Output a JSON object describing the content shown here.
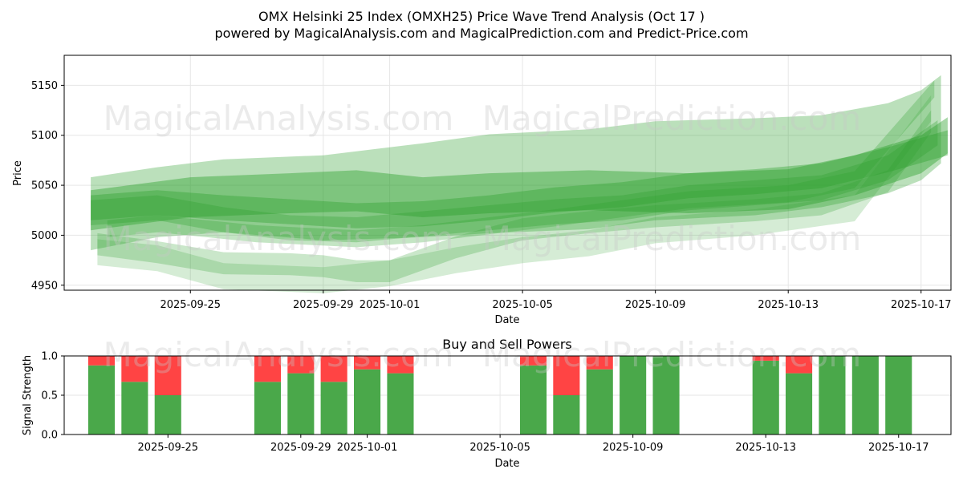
{
  "title_line1": "OMX Helsinki 25 Index (OMXH25) Price Wave Trend Analysis (Oct 17 )",
  "title_line2": "powered by MagicalAnalysis.com and MagicalPrediction.com and Predict-Price.com",
  "watermarks": [
    "MagicalAnalysis.com",
    "MagicalPrediction.com"
  ],
  "colors": {
    "band": "#2ca02c",
    "buy": "#4aa84a",
    "sell": "#ff4444",
    "grid": "#e6e6e6"
  },
  "chart_data": [
    {
      "type": "area",
      "title": "",
      "xlabel": "Date",
      "ylabel": "Price",
      "x_start": "2025-09-22",
      "x_end": "2025-10-17",
      "xlim": [
        -0.8,
        25.9
      ],
      "ylim": [
        4945,
        5180
      ],
      "x_ticks": [
        {
          "day": 3,
          "label": "2025-09-25"
        },
        {
          "day": 7,
          "label": "2025-09-29"
        },
        {
          "day": 9,
          "label": "2025-10-01"
        },
        {
          "day": 13,
          "label": "2025-10-05"
        },
        {
          "day": 17,
          "label": "2025-10-09"
        },
        {
          "day": 21,
          "label": "2025-10-13"
        },
        {
          "day": 25,
          "label": "2025-10-17"
        }
      ],
      "y_ticks": [
        4950,
        5000,
        5050,
        5100,
        5150
      ],
      "grid": true,
      "bands": [
        {
          "upper": [
            [
              0,
              5058
            ],
            [
              2,
              5068
            ],
            [
              4,
              5076
            ],
            [
              7,
              5080
            ],
            [
              10,
              5092
            ],
            [
              12,
              5101
            ],
            [
              15,
              5106
            ],
            [
              17,
              5114
            ],
            [
              20,
              5117
            ],
            [
              22,
              5120
            ],
            [
              24,
              5132
            ],
            [
              25,
              5145
            ],
            [
              25.6,
              5160
            ]
          ],
          "lower": [
            [
              0,
              4985
            ],
            [
              2,
              4998
            ],
            [
              4,
              5003
            ],
            [
              7,
              4995
            ],
            [
              10,
              4998
            ],
            [
              12,
              5002
            ],
            [
              15,
              5006
            ],
            [
              17,
              5015
            ],
            [
              20,
              5020
            ],
            [
              22,
              5028
            ],
            [
              24,
              5042
            ],
            [
              25,
              5055
            ],
            [
              25.6,
              5072
            ]
          ],
          "opacity": 0.32
        },
        {
          "upper": [
            [
              0,
              5045
            ],
            [
              3,
              5058
            ],
            [
              6,
              5062
            ],
            [
              8,
              5065
            ],
            [
              10,
              5058
            ],
            [
              12,
              5062
            ],
            [
              15,
              5065
            ],
            [
              18,
              5062
            ],
            [
              21,
              5066
            ],
            [
              23,
              5080
            ],
            [
              25,
              5100
            ],
            [
              25.8,
              5118
            ]
          ],
          "lower": [
            [
              0,
              5005
            ],
            [
              3,
              5018
            ],
            [
              6,
              5022
            ],
            [
              8,
              5024
            ],
            [
              10,
              5018
            ],
            [
              12,
              5022
            ],
            [
              15,
              5025
            ],
            [
              18,
              5022
            ],
            [
              21,
              5026
            ],
            [
              23,
              5040
            ],
            [
              25,
              5062
            ],
            [
              25.8,
              5082
            ]
          ],
          "opacity": 0.42
        },
        {
          "upper": [
            [
              0,
              5040
            ],
            [
              2,
              5045
            ],
            [
              4,
              5040
            ],
            [
              6,
              5036
            ],
            [
              8,
              5032
            ],
            [
              10,
              5034
            ],
            [
              12,
              5040
            ],
            [
              14,
              5048
            ],
            [
              16,
              5053
            ],
            [
              18,
              5062
            ],
            [
              20,
              5066
            ],
            [
              22,
              5072
            ],
            [
              24,
              5088
            ],
            [
              25.8,
              5105
            ]
          ],
          "lower": [
            [
              0,
              5015
            ],
            [
              2,
              5020
            ],
            [
              4,
              5015
            ],
            [
              6,
              5011
            ],
            [
              8,
              5007
            ],
            [
              10,
              5009
            ],
            [
              12,
              5015
            ],
            [
              14,
              5023
            ],
            [
              16,
              5028
            ],
            [
              18,
              5037
            ],
            [
              20,
              5041
            ],
            [
              22,
              5047
            ],
            [
              24,
              5063
            ],
            [
              25.8,
              5080
            ]
          ],
          "opacity": 0.38
        },
        {
          "upper": [
            [
              0,
              5035
            ],
            [
              2,
              5040
            ],
            [
              4,
              5028
            ],
            [
              6,
              5020
            ],
            [
              8,
              5018
            ],
            [
              10,
              5024
            ],
            [
              12,
              5030
            ],
            [
              14,
              5036
            ],
            [
              16,
              5040
            ],
            [
              18,
              5050
            ],
            [
              20,
              5055
            ],
            [
              22,
              5060
            ],
            [
              24,
              5080
            ],
            [
              25.5,
              5115
            ]
          ],
          "lower": [
            [
              0,
              5010
            ],
            [
              2,
              5015
            ],
            [
              4,
              5003
            ],
            [
              6,
              4995
            ],
            [
              8,
              4993
            ],
            [
              10,
              4999
            ],
            [
              12,
              5005
            ],
            [
              14,
              5011
            ],
            [
              16,
              5015
            ],
            [
              18,
              5025
            ],
            [
              20,
              5030
            ],
            [
              22,
              5035
            ],
            [
              24,
              5055
            ],
            [
              25.5,
              5090
            ]
          ],
          "opacity": 0.3
        },
        {
          "upper": [
            [
              0.2,
              5002
            ],
            [
              2,
              4994
            ],
            [
              4,
              4983
            ],
            [
              6,
              4982
            ],
            [
              7,
              4980
            ],
            [
              8,
              4975
            ],
            [
              9,
              4975
            ],
            [
              11,
              4999
            ],
            [
              13,
              5017
            ],
            [
              15,
              5024
            ],
            [
              17,
              5030
            ],
            [
              20,
              5036
            ],
            [
              22,
              5042
            ],
            [
              24,
              5065
            ],
            [
              25.3,
              5125
            ]
          ],
          "lower": [
            [
              0.2,
              4980
            ],
            [
              2,
              4972
            ],
            [
              4,
              4961
            ],
            [
              6,
              4960
            ],
            [
              7,
              4958
            ],
            [
              8,
              4953
            ],
            [
              9,
              4953
            ],
            [
              11,
              4977
            ],
            [
              13,
              4995
            ],
            [
              15,
              5002
            ],
            [
              17,
              5008
            ],
            [
              20,
              5014
            ],
            [
              22,
              5020
            ],
            [
              24,
              5043
            ],
            [
              25.3,
              5103
            ]
          ],
          "opacity": 0.25
        },
        {
          "upper": [
            [
              0.2,
              4996
            ],
            [
              2,
              4990
            ],
            [
              4,
              4972
            ],
            [
              7,
              4968
            ],
            [
              9,
              4975
            ],
            [
              11,
              4988
            ],
            [
              13,
              4998
            ],
            [
              15,
              5005
            ],
            [
              17,
              5018
            ],
            [
              20,
              5026
            ],
            [
              23,
              5040
            ],
            [
              25.3,
              5140
            ]
          ],
          "lower": [
            [
              0.2,
              4970
            ],
            [
              2,
              4964
            ],
            [
              4,
              4946
            ],
            [
              7,
              4942
            ],
            [
              9,
              4949
            ],
            [
              11,
              4962
            ],
            [
              13,
              4972
            ],
            [
              15,
              4979
            ],
            [
              17,
              4992
            ],
            [
              20,
              5000
            ],
            [
              23,
              5014
            ],
            [
              25.3,
              5114
            ]
          ],
          "opacity": 0.2
        },
        {
          "upper": [
            [
              0.5,
              5015
            ],
            [
              2,
              5020
            ],
            [
              5,
              5010
            ],
            [
              8,
              5005
            ],
            [
              10,
              5010
            ],
            [
              12,
              5018
            ],
            [
              14,
              5026
            ],
            [
              16,
              5035
            ],
            [
              18,
              5044
            ],
            [
              21,
              5050
            ],
            [
              23,
              5064
            ],
            [
              25.4,
              5155
            ]
          ],
          "lower": [
            [
              0.5,
              4998
            ],
            [
              2,
              5003
            ],
            [
              5,
              4993
            ],
            [
              8,
              4988
            ],
            [
              10,
              4993
            ],
            [
              12,
              5001
            ],
            [
              14,
              5009
            ],
            [
              16,
              5018
            ],
            [
              18,
              5027
            ],
            [
              21,
              5033
            ],
            [
              23,
              5047
            ],
            [
              25.4,
              5138
            ]
          ],
          "opacity": 0.28
        }
      ]
    },
    {
      "type": "bar",
      "title": "Buy and Sell Powers",
      "xlabel": "Date",
      "ylabel": "Signal Strength",
      "xlim": [
        -0.8,
        25.9
      ],
      "ylim": [
        0,
        1
      ],
      "y_ticks": [
        0.0,
        0.5,
        1.0
      ],
      "y_tick_labels": [
        "0.0",
        "0.5",
        "1.0"
      ],
      "x_ticks": [
        {
          "day": 3,
          "label": "2025-09-25"
        },
        {
          "day": 7,
          "label": "2025-09-29"
        },
        {
          "day": 9,
          "label": "2025-10-01"
        },
        {
          "day": 13,
          "label": "2025-10-05"
        },
        {
          "day": 17,
          "label": "2025-10-09"
        },
        {
          "day": 21,
          "label": "2025-10-13"
        },
        {
          "day": 25,
          "label": "2025-10-17"
        }
      ],
      "grid": true,
      "series": [
        {
          "name": "Buy",
          "color": "#4aa84a"
        },
        {
          "name": "Sell",
          "color": "#ff4444"
        }
      ],
      "bars": [
        {
          "day": 1,
          "buy": 0.88
        },
        {
          "day": 2,
          "buy": 0.67
        },
        {
          "day": 3,
          "buy": 0.5
        },
        {
          "day": 6,
          "buy": 0.67
        },
        {
          "day": 7,
          "buy": 0.78
        },
        {
          "day": 8,
          "buy": 0.67
        },
        {
          "day": 9,
          "buy": 0.83
        },
        {
          "day": 10,
          "buy": 0.78
        },
        {
          "day": 14,
          "buy": 0.88
        },
        {
          "day": 15,
          "buy": 0.5
        },
        {
          "day": 16,
          "buy": 0.83
        },
        {
          "day": 17,
          "buy": 1.0
        },
        {
          "day": 18,
          "buy": 1.0
        },
        {
          "day": 21,
          "buy": 0.94
        },
        {
          "day": 22,
          "buy": 0.78
        },
        {
          "day": 23,
          "buy": 1.0
        },
        {
          "day": 24,
          "buy": 1.0
        },
        {
          "day": 25,
          "buy": 1.0
        }
      ]
    }
  ]
}
